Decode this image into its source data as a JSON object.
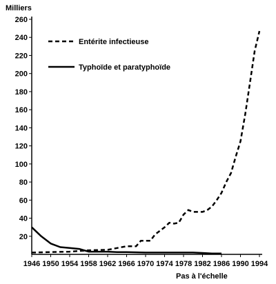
{
  "chart_data": {
    "type": "line",
    "ylabel": "Milliers",
    "xlabel": "",
    "footnote": "Pas à l'échelle",
    "ylim": [
      0,
      260
    ],
    "xlim": [
      1946,
      1994
    ],
    "x_ticks": [
      "1946",
      "1950",
      "1954",
      "1958",
      "1962",
      "1966",
      "1970",
      "1974",
      "1978",
      "1982",
      "1986",
      "1990",
      "1994"
    ],
    "y_ticks": [
      "20",
      "40",
      "60",
      "80",
      "100",
      "120",
      "140",
      "160",
      "180",
      "200",
      "220",
      "240",
      "260"
    ],
    "legend_position": "top-left",
    "series": [
      {
        "name": "Entérite infectieuse",
        "style": "dashed",
        "color": "#000000",
        "x": [
          1946,
          1950,
          1954,
          1958,
          1962,
          1964,
          1966,
          1968,
          1969,
          1971,
          1972,
          1974,
          1975,
          1976,
          1977,
          1978,
          1979,
          1980,
          1981,
          1982,
          1983,
          1984,
          1985,
          1986,
          1987,
          1988,
          1989,
          1990,
          1991,
          1992,
          1993,
          1994
        ],
        "y": [
          2,
          2.5,
          3,
          4.5,
          5,
          7,
          9,
          9,
          15,
          15,
          22,
          30,
          35,
          34,
          35,
          44,
          49,
          47,
          47,
          47,
          49,
          53,
          60,
          68,
          80,
          90,
          108,
          125,
          155,
          190,
          225,
          247
        ]
      },
      {
        "name": "Typhoïde et paratyphoïde",
        "style": "solid",
        "color": "#000000",
        "x": [
          1946,
          1948,
          1950,
          1952,
          1954,
          1956,
          1958,
          1960,
          1962,
          1964,
          1966,
          1970,
          1974,
          1978,
          1980,
          1982,
          1984,
          1986
        ],
        "y": [
          30,
          20,
          12,
          8,
          7,
          6,
          3,
          3,
          3,
          2.5,
          2.5,
          2,
          2,
          2,
          2,
          1.5,
          1,
          1
        ]
      }
    ]
  }
}
